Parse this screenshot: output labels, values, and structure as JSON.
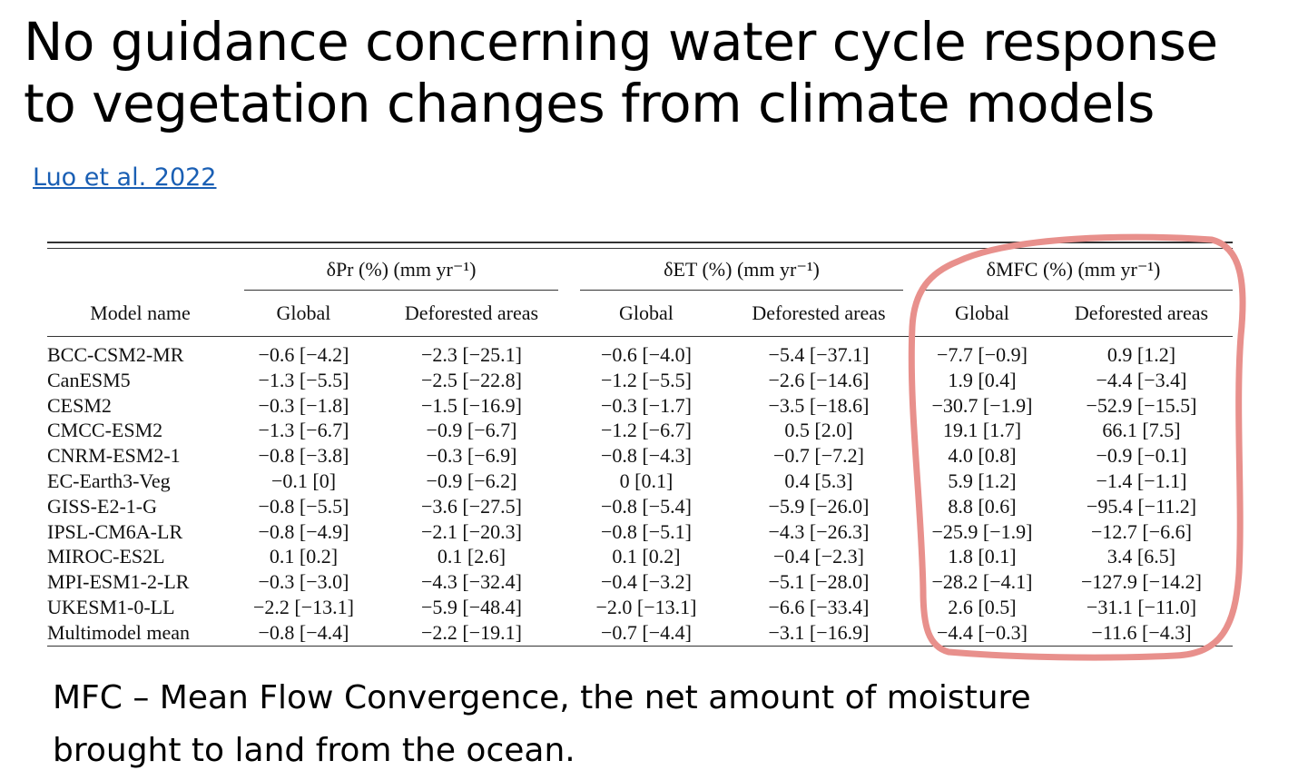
{
  "slide": {
    "title_line1": "No guidance concerning water cycle response",
    "title_line2": "to vegetation changes from climate models",
    "citation": "Luo et al. 2022",
    "footnote_line1": "MFC – Mean Flow Convergence, the net amount of moisture",
    "footnote_line2": "brought to land from the ocean.",
    "highlight_color": "#e8908c"
  },
  "table": {
    "groups": [
      "δPr (%) (mm yr⁻¹)",
      "δET (%) (mm yr⁻¹)",
      "δMFC (%) (mm yr⁻¹)"
    ],
    "columns": [
      "Model name",
      "Global",
      "Deforested areas",
      "Global",
      "Deforested areas",
      "Global",
      "Deforested areas"
    ],
    "rows": [
      [
        "BCC-CSM2-MR",
        "−0.6 [−4.2]",
        "−2.3 [−25.1]",
        "−0.6 [−4.0]",
        "−5.4 [−37.1]",
        "−7.7 [−0.9]",
        "0.9 [1.2]"
      ],
      [
        "CanESM5",
        "−1.3 [−5.5]",
        "−2.5 [−22.8]",
        "−1.2 [−5.5]",
        "−2.6 [−14.6]",
        "1.9 [0.4]",
        "−4.4 [−3.4]"
      ],
      [
        "CESM2",
        "−0.3 [−1.8]",
        "−1.5 [−16.9]",
        "−0.3 [−1.7]",
        "−3.5 [−18.6]",
        "−30.7 [−1.9]",
        "−52.9 [−15.5]"
      ],
      [
        "CMCC-ESM2",
        "−1.3 [−6.7]",
        "−0.9 [−6.7]",
        "−1.2 [−6.7]",
        "0.5 [2.0]",
        "19.1 [1.7]",
        "66.1 [7.5]"
      ],
      [
        "CNRM-ESM2-1",
        "−0.8 [−3.8]",
        "−0.3 [−6.9]",
        "−0.8 [−4.3]",
        "−0.7 [−7.2]",
        "4.0 [0.8]",
        "−0.9 [−0.1]"
      ],
      [
        "EC-Earth3-Veg",
        "−0.1 [0]",
        "−0.9 [−6.2]",
        "0 [0.1]",
        "0.4 [5.3]",
        "5.9 [1.2]",
        "−1.4 [−1.1]"
      ],
      [
        "GISS-E2-1-G",
        "−0.8 [−5.5]",
        "−3.6 [−27.5]",
        "−0.8 [−5.4]",
        "−5.9 [−26.0]",
        "8.8 [0.6]",
        "−95.4 [−11.2]"
      ],
      [
        "IPSL-CM6A-LR",
        "−0.8 [−4.9]",
        "−2.1 [−20.3]",
        "−0.8 [−5.1]",
        "−4.3 [−26.3]",
        "−25.9 [−1.9]",
        "−12.7 [−6.6]"
      ],
      [
        "MIROC-ES2L",
        "0.1 [0.2]",
        "0.1 [2.6]",
        "0.1 [0.2]",
        "−0.4 [−2.3]",
        "1.8 [0.1]",
        "3.4 [6.5]"
      ],
      [
        "MPI-ESM1-2-LR",
        "−0.3 [−3.0]",
        "−4.3 [−32.4]",
        "−0.4 [−3.2]",
        "−5.1 [−28.0]",
        "−28.2 [−4.1]",
        "−127.9 [−14.2]"
      ],
      [
        "UKESM1-0-LL",
        "−2.2 [−13.1]",
        "−5.9 [−48.4]",
        "−2.0 [−13.1]",
        "−6.6 [−33.4]",
        "2.6 [0.5]",
        "−31.1 [−11.0]"
      ],
      [
        "Multimodel mean",
        "−0.8 [−4.4]",
        "−2.2 [−19.1]",
        "−0.7 [−4.4]",
        "−3.1 [−16.9]",
        "−4.4 [−0.3]",
        "−11.6 [−4.3]"
      ]
    ]
  }
}
